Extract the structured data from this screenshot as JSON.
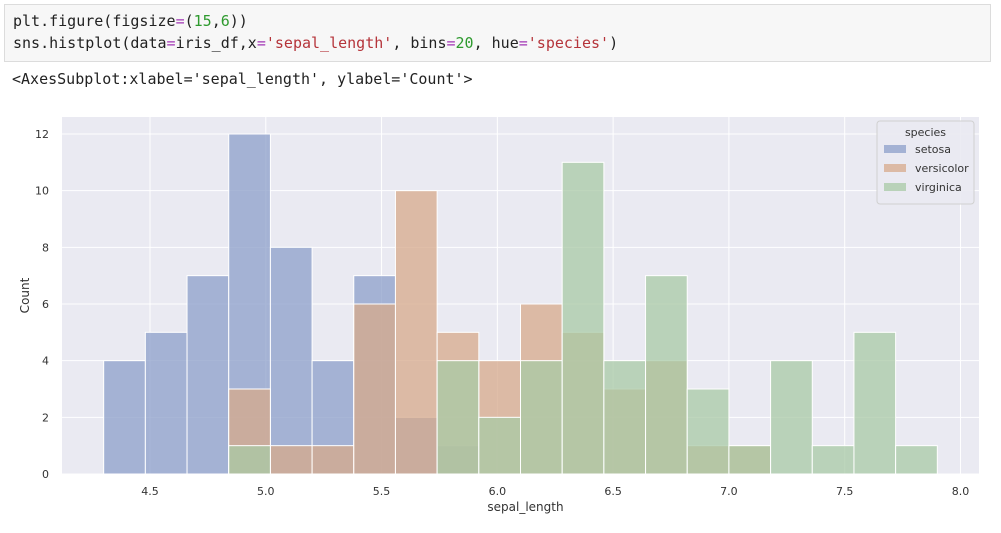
{
  "code": {
    "line1": {
      "a": "plt.figure(figsize",
      "b": "=",
      "c": "(",
      "d": "15",
      "e": ",",
      "f": "6",
      "g": "))"
    },
    "line2": {
      "a": "sns.histplot(data",
      "b": "=",
      "c": "iris_df,x",
      "d": "=",
      "e": "'sepal_length'",
      "f": ", bins",
      "g": "=",
      "h": "20",
      "i": ", hue",
      "j": "=",
      "k": "'species'",
      "l": ")"
    }
  },
  "output_text": "<AxesSubplot:xlabel='sepal_length', ylabel='Count'>",
  "chart_data": {
    "type": "bar",
    "title": "",
    "xlabel": "sepal_length",
    "ylabel": "Count",
    "xlim": [
      4.12,
      8.08
    ],
    "ylim": [
      0,
      12.6
    ],
    "xticks": [
      "4.5",
      "5.0",
      "5.5",
      "6.0",
      "6.5",
      "7.0",
      "7.5",
      "8.0"
    ],
    "yticks": [
      "0",
      "2",
      "4",
      "6",
      "8",
      "10",
      "12"
    ],
    "grid": true,
    "legend": {
      "title": "species",
      "position": "top-right"
    },
    "bin_start": 4.3,
    "bin_width": 0.18,
    "bins": 20,
    "series": [
      {
        "name": "setosa",
        "color": "#8c9fca",
        "values": [
          4,
          5,
          7,
          12,
          8,
          4,
          7,
          2,
          1,
          0,
          0,
          0,
          0,
          0,
          0,
          0,
          0,
          0,
          0,
          0
        ]
      },
      {
        "name": "versicolor",
        "color": "#d7a98b",
        "values": [
          0,
          0,
          0,
          3,
          1,
          1,
          6,
          10,
          5,
          4,
          6,
          5,
          3,
          4,
          1,
          1,
          0,
          0,
          0,
          0
        ]
      },
      {
        "name": "virginica",
        "color": "#a8c9a6",
        "values": [
          0,
          0,
          0,
          1,
          0,
          0,
          0,
          0,
          4,
          2,
          4,
          11,
          4,
          7,
          3,
          1,
          4,
          1,
          5,
          1
        ]
      }
    ],
    "colors": {
      "background": "#eaeaf2",
      "grid": "#ffffff"
    }
  }
}
